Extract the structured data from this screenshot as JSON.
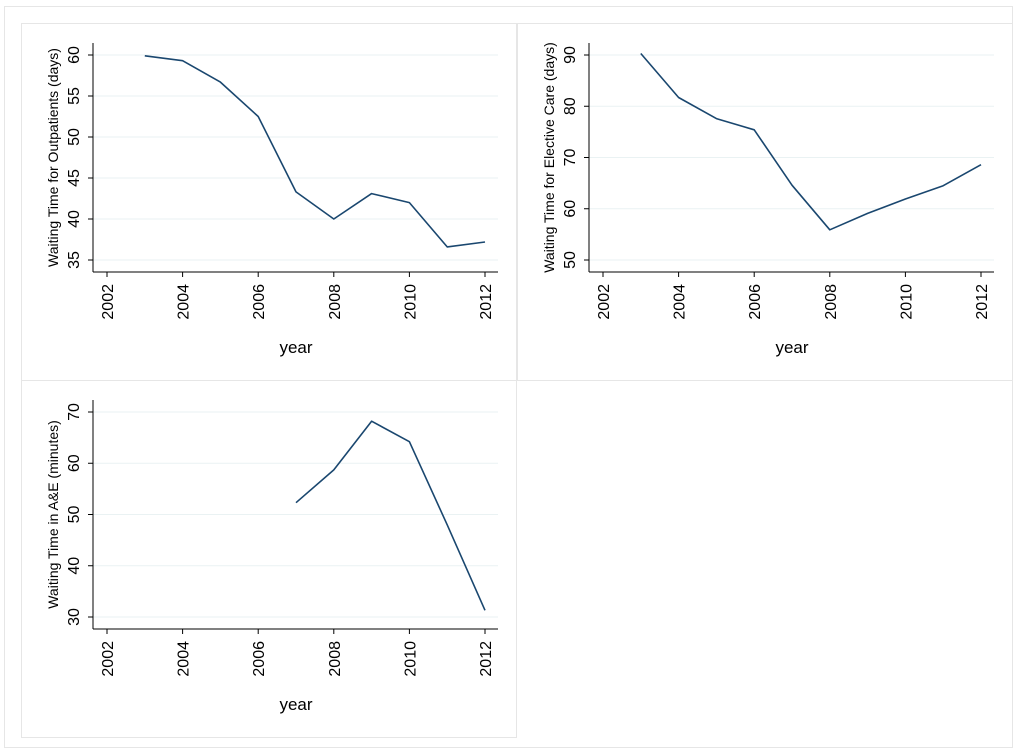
{
  "colors": {
    "line": "#1a476f",
    "grid": "#eaf2f3",
    "axis": "#000000",
    "panel_border": "#e6e6e6",
    "background": "#ffffff"
  },
  "chart_data": [
    {
      "type": "line",
      "xlabel": "year",
      "ylabel": "Waiting Time for Outpatients (days)",
      "xlim": [
        2002,
        2012
      ],
      "ylim": [
        35,
        60
      ],
      "xticks": [
        2002,
        2004,
        2006,
        2008,
        2010,
        2012
      ],
      "yticks": [
        35,
        40,
        45,
        50,
        55,
        60
      ],
      "grid": true,
      "series": [
        {
          "x": [
            2003,
            2004,
            2005,
            2006,
            2007,
            2008,
            2009,
            2010,
            2011,
            2012
          ],
          "values": [
            59.9,
            59.3,
            56.7,
            52.5,
            43.3,
            40.0,
            43.1,
            42.0,
            36.6,
            37.2
          ]
        }
      ]
    },
    {
      "type": "line",
      "xlabel": "year",
      "ylabel": "Waiting Time for Elective Care (days)",
      "xlim": [
        2002,
        2012
      ],
      "ylim": [
        50,
        90
      ],
      "xticks": [
        2002,
        2004,
        2006,
        2008,
        2010,
        2012
      ],
      "yticks": [
        50,
        60,
        70,
        80,
        90
      ],
      "grid": true,
      "series": [
        {
          "x": [
            2003,
            2004,
            2005,
            2006,
            2007,
            2008,
            2009,
            2010,
            2011,
            2012
          ],
          "values": [
            90.3,
            81.7,
            77.6,
            75.4,
            64.6,
            55.9,
            59.1,
            61.9,
            64.5,
            68.6
          ]
        }
      ]
    },
    {
      "type": "line",
      "xlabel": "year",
      "ylabel": "Waiting Time in A&E (minutes)",
      "xlim": [
        2002,
        2012
      ],
      "ylim": [
        30,
        70
      ],
      "xticks": [
        2002,
        2004,
        2006,
        2008,
        2010,
        2012
      ],
      "yticks": [
        30,
        40,
        50,
        60,
        70
      ],
      "grid": true,
      "series": [
        {
          "x": [
            2007,
            2008,
            2009,
            2010,
            2011,
            2012
          ],
          "values": [
            52.3,
            58.7,
            68.2,
            64.2,
            48.0,
            31.3
          ]
        }
      ]
    }
  ]
}
